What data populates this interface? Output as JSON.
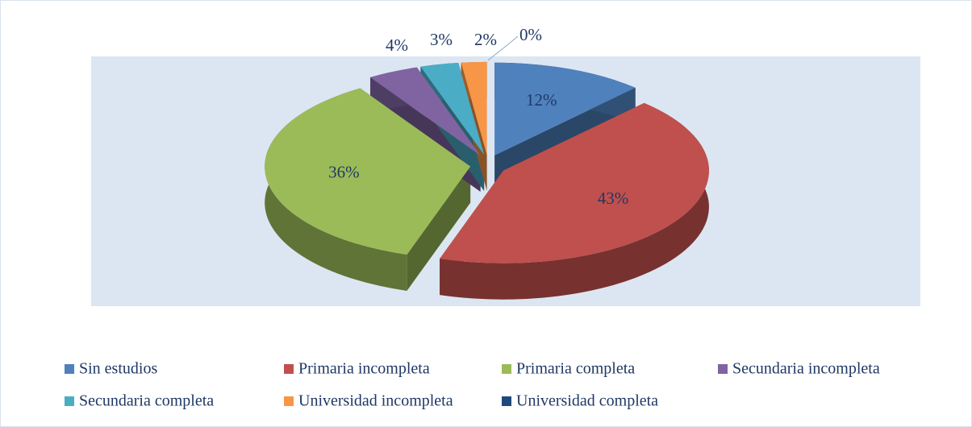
{
  "chart_data": {
    "type": "pie",
    "categories": [
      "Sin estudios",
      "Primaria incompleta",
      "Primaria completa",
      "Secundaria incompleta",
      "Secundaria completa",
      "Universidad incompleta",
      "Universidad completa"
    ],
    "values": [
      12,
      43,
      36,
      4,
      3,
      2,
      0
    ],
    "value_labels": [
      "12%",
      "43%",
      "36%",
      "4%",
      "3%",
      "2%",
      "0%"
    ],
    "colors": [
      "#4f81bd",
      "#c0504d",
      "#9bbb59",
      "#8064a2",
      "#4bacc6",
      "#f79646",
      "#1f497d"
    ],
    "legend": "bottom"
  }
}
